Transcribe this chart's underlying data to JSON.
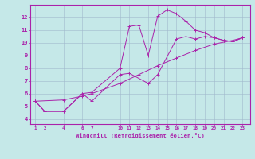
{
  "xlabel": "Windchill (Refroidissement éolien,°C)",
  "background_color": "#c5e8e8",
  "grid_color": "#a0b8cc",
  "line_color": "#aa22aa",
  "x_ticks": [
    1,
    2,
    4,
    6,
    7,
    10,
    11,
    12,
    13,
    14,
    15,
    16,
    17,
    18,
    19,
    20,
    21,
    22,
    23
  ],
  "y_ticks": [
    4,
    5,
    6,
    7,
    8,
    9,
    10,
    11,
    12
  ],
  "xlim": [
    0.5,
    23.8
  ],
  "ylim": [
    3.6,
    13.0
  ],
  "lines": [
    {
      "x": [
        1,
        2,
        4,
        6,
        7,
        10,
        11,
        12,
        13,
        14,
        15,
        16,
        17,
        18,
        19,
        20,
        21,
        22,
        23
      ],
      "y": [
        5.4,
        4.6,
        4.6,
        6.0,
        6.1,
        8.0,
        11.3,
        11.4,
        9.0,
        12.1,
        12.6,
        12.3,
        11.7,
        11.0,
        10.8,
        10.4,
        10.2,
        10.1,
        10.4
      ]
    },
    {
      "x": [
        1,
        2,
        4,
        6,
        7,
        10,
        11,
        13,
        14,
        16,
        17,
        18,
        19,
        20,
        21,
        22,
        23
      ],
      "y": [
        5.4,
        4.6,
        4.6,
        6.0,
        5.4,
        7.5,
        7.6,
        6.8,
        7.5,
        10.3,
        10.5,
        10.3,
        10.5,
        10.4,
        10.2,
        10.1,
        10.4
      ]
    },
    {
      "x": [
        1,
        4,
        6,
        7,
        10,
        12,
        14,
        16,
        18,
        20,
        22,
        23
      ],
      "y": [
        5.4,
        5.5,
        5.8,
        6.0,
        6.8,
        7.5,
        8.2,
        8.8,
        9.4,
        9.9,
        10.2,
        10.4
      ]
    }
  ]
}
